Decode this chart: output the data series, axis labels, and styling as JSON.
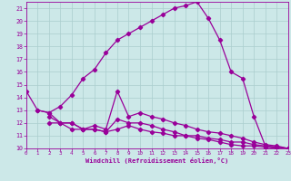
{
  "line1_x": [
    0,
    1,
    2,
    3,
    4,
    5,
    6,
    7,
    8,
    9,
    10,
    11,
    12,
    13,
    14,
    15,
    16,
    17,
    18,
    19,
    20,
    21,
    22,
    23
  ],
  "line1_y": [
    14.5,
    13.0,
    12.8,
    13.3,
    14.2,
    15.5,
    16.2,
    17.5,
    18.5,
    19.0,
    19.5,
    20.0,
    20.5,
    21.0,
    21.2,
    21.5,
    20.2,
    18.5,
    16.0,
    15.5,
    12.5,
    10.2,
    10.1,
    10.0
  ],
  "line2_x": [
    1,
    2,
    3,
    4,
    5,
    6,
    7,
    8,
    9,
    10,
    11,
    12,
    13,
    14,
    15,
    16,
    17,
    18,
    19,
    20,
    21,
    22,
    23
  ],
  "line2_y": [
    13.0,
    12.8,
    12.0,
    12.0,
    11.5,
    11.8,
    11.5,
    14.5,
    12.5,
    12.8,
    12.5,
    12.3,
    12.0,
    11.8,
    11.5,
    11.3,
    11.2,
    11.0,
    10.8,
    10.5,
    10.3,
    10.2,
    10.0
  ],
  "line3_x": [
    2,
    3,
    4,
    5,
    6,
    7,
    8,
    9,
    10,
    11,
    12,
    13,
    14,
    15,
    16,
    17,
    18,
    19,
    20,
    21,
    22,
    23
  ],
  "line3_y": [
    12.5,
    12.0,
    12.0,
    11.5,
    11.5,
    11.3,
    12.3,
    12.0,
    12.0,
    11.8,
    11.5,
    11.3,
    11.0,
    11.0,
    10.8,
    10.7,
    10.5,
    10.5,
    10.3,
    10.2,
    10.1,
    10.0
  ],
  "line4_x": [
    2,
    3,
    4,
    5,
    6,
    7,
    8,
    9,
    10,
    11,
    12,
    13,
    14,
    15,
    16,
    17,
    18,
    19,
    20,
    21,
    22,
    23
  ],
  "line4_y": [
    12.0,
    12.0,
    11.5,
    11.5,
    11.5,
    11.3,
    11.5,
    11.8,
    11.5,
    11.3,
    11.2,
    11.0,
    11.0,
    10.8,
    10.7,
    10.5,
    10.3,
    10.2,
    10.2,
    10.1,
    10.0,
    10.0
  ],
  "line_color": "#990099",
  "bg_color": "#cce8e8",
  "grid_color": "#aacece",
  "xlabel": "Windchill (Refroidissement éolien,°C)",
  "xlim": [
    0,
    23
  ],
  "ylim": [
    10,
    21.5
  ],
  "xticks": [
    0,
    1,
    2,
    3,
    4,
    5,
    6,
    7,
    8,
    9,
    10,
    11,
    12,
    13,
    14,
    15,
    16,
    17,
    18,
    19,
    20,
    21,
    22,
    23
  ],
  "yticks": [
    10,
    11,
    12,
    13,
    14,
    15,
    16,
    17,
    18,
    19,
    20,
    21
  ],
  "marker": "D",
  "markersize": 2.2,
  "linewidth": 0.9
}
